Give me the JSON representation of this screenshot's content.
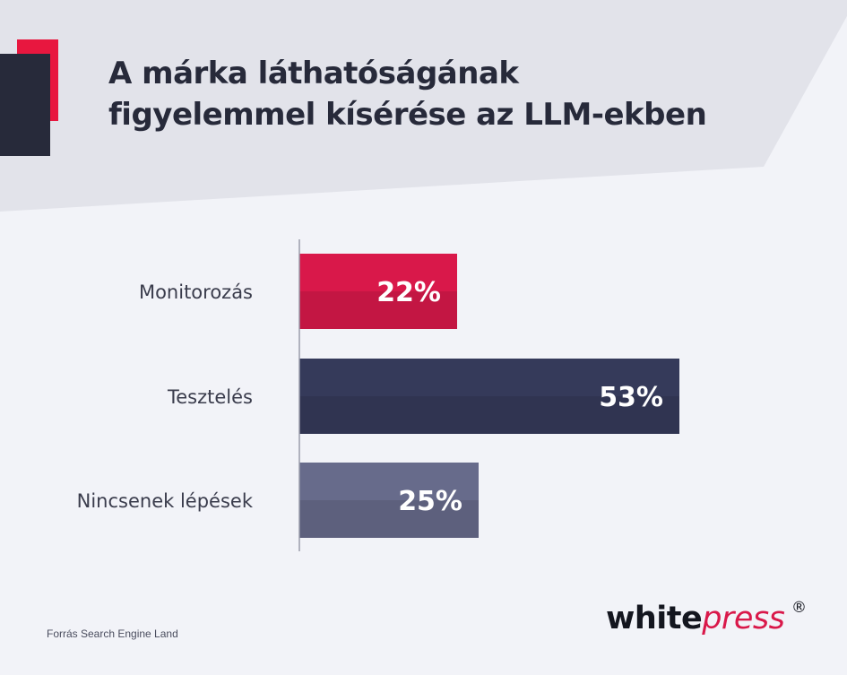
{
  "header": {
    "title_line1": "A márka láthatóságának",
    "title_line2": "figyelemmel kísérése az LLM-ekben"
  },
  "chart_data": {
    "type": "bar",
    "orientation": "horizontal",
    "categories": [
      "Monitorozás",
      "Tesztelés",
      "Nincsenek lépések"
    ],
    "values": [
      22,
      53,
      25
    ],
    "value_labels": [
      "22%",
      "53%",
      "25%"
    ],
    "bar_colors": [
      "#d9184a",
      "#353a5a",
      "#676b8b"
    ],
    "xlim": [
      0,
      60
    ],
    "grid": false,
    "legend": "none"
  },
  "footer": {
    "source": "Forrás Search Engine Land"
  },
  "logo": {
    "part1": "white",
    "part2": "press",
    "registered": "®"
  },
  "colors": {
    "background": "#f2f3f8",
    "header_band": "#e2e3ea",
    "accent_red": "#e8173f",
    "dark_navy": "#272a3a"
  }
}
